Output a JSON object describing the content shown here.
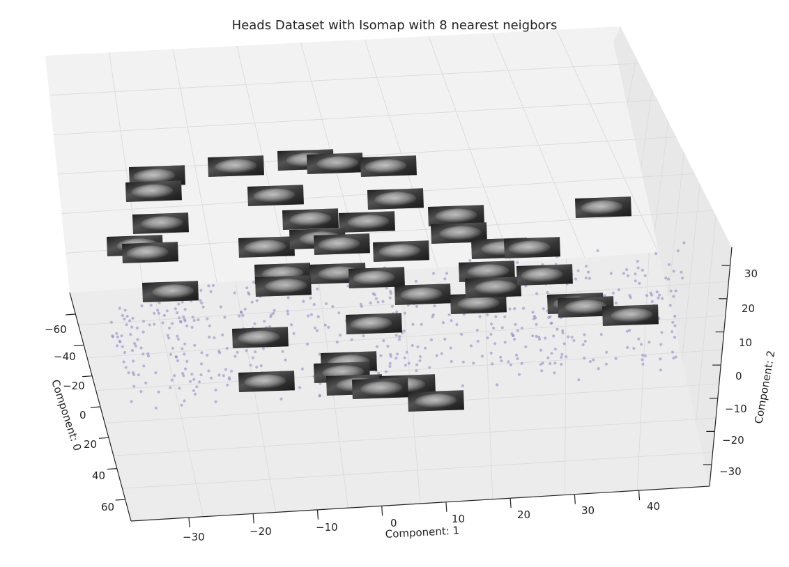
{
  "chart_data": {
    "type": "scatter",
    "projection": "3d",
    "title": "Heads Dataset with Isomap with 8 nearest neigbors",
    "xlabel": "Component: 0",
    "ylabel": "Component: 1",
    "zlabel": "Component: 2",
    "xlim": [
      -70,
      70
    ],
    "ylim": [
      -40,
      50
    ],
    "zlim": [
      -35,
      35
    ],
    "x_ticks": [
      "−60",
      "−40",
      "−20",
      "0",
      "20",
      "40",
      "60"
    ],
    "y_ticks": [
      "−30",
      "−20",
      "−10",
      "0",
      "10",
      "20",
      "30",
      "40"
    ],
    "z_ticks": [
      "30",
      "20",
      "10",
      "0",
      "−10",
      "−20",
      "−30"
    ],
    "grid": true,
    "point_color": "#8a87c4",
    "thumbnail_style": "grayscale head image thumbnails placed at selected points",
    "points_summary": "about 600 faint points spread over the Component 0 / Component 1 plane, with about 45 head image thumbnails"
  }
}
